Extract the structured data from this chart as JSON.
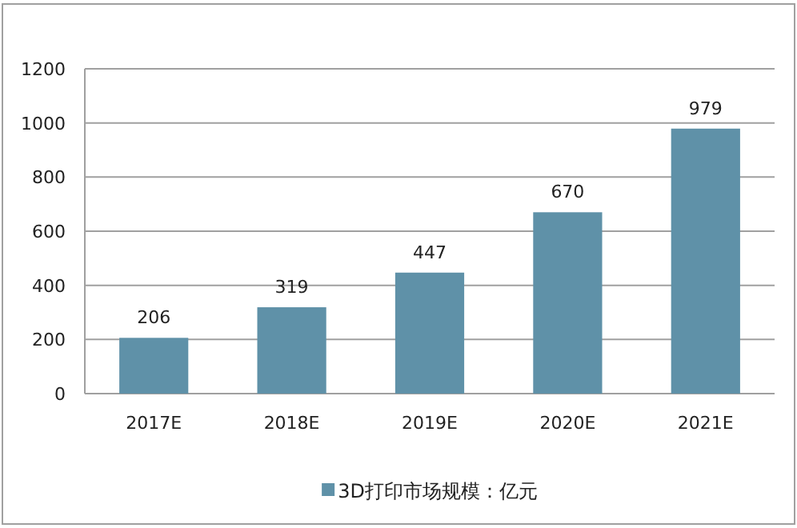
{
  "chart_data": {
    "type": "bar",
    "categories": [
      "2017E",
      "2018E",
      "2019E",
      "2020E",
      "2021E"
    ],
    "series": [
      {
        "name": "3D打印市场规模：亿元",
        "color": "#5f91a8",
        "values": [
          206,
          319,
          447,
          670,
          979
        ]
      }
    ],
    "ylim": [
      0,
      1200
    ],
    "yticks": [
      0,
      200,
      400,
      600,
      800,
      1000,
      1200
    ],
    "grid": "y",
    "data_labels": true,
    "legend": "bottom"
  }
}
